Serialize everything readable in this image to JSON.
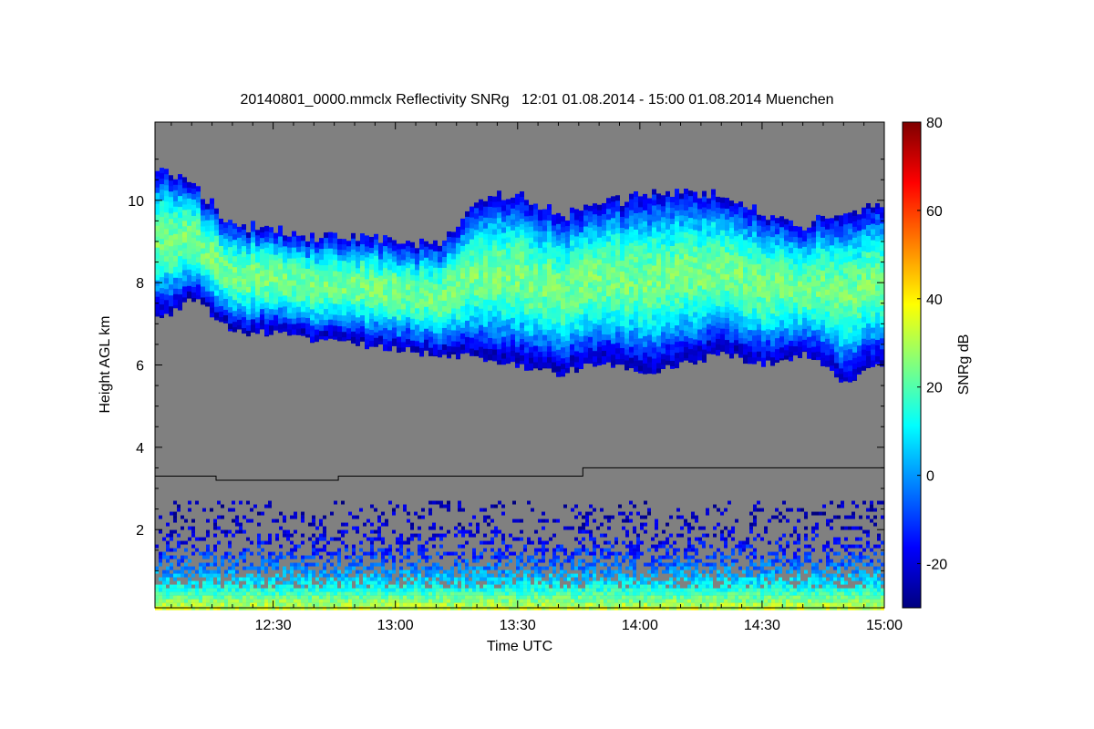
{
  "chart_data": {
    "type": "heatmap",
    "title": "20140801_0000.mmclx Reflectivity SNRg   12:01 01.08.2014 - 15:00 01.08.2014 Muenchen",
    "xlabel": "Time UTC",
    "ylabel": "Height AGL km",
    "colorbar_label": "SNRg dB",
    "x_ticks": [
      "12:30",
      "13:00",
      "13:30",
      "14:00",
      "14:30",
      "15:00"
    ],
    "x_tick_minutes": [
      30,
      60,
      90,
      120,
      150,
      180
    ],
    "xlim_minutes": [
      1,
      180
    ],
    "y_ticks": [
      "2",
      "4",
      "6",
      "8",
      "10"
    ],
    "y_tick_values": [
      2,
      4,
      6,
      8,
      10
    ],
    "ylim": [
      0.1,
      11.9
    ],
    "colorbar_ticks": [
      "80",
      "60",
      "40",
      "20",
      "0",
      "-20"
    ],
    "colorbar_tick_values": [
      80,
      60,
      40,
      20,
      0,
      -20
    ],
    "colorbar_range": [
      -30,
      80
    ],
    "colormap": [
      "#00007f",
      "#0000ff",
      "#007fff",
      "#00ffff",
      "#7fff7f",
      "#ffff00",
      "#ff7f00",
      "#ff0000",
      "#7f0000"
    ],
    "no_signal_color": "#808080",
    "cloud_layer": {
      "time_minutes": [
        1,
        10,
        20,
        30,
        40,
        50,
        60,
        70,
        80,
        90,
        100,
        110,
        120,
        130,
        140,
        150,
        160,
        170,
        180
      ],
      "top_km": [
        10.8,
        10.3,
        9.4,
        9.3,
        9.1,
        9.1,
        9.0,
        8.9,
        10.0,
        10.2,
        9.6,
        9.9,
        10.1,
        10.2,
        10.1,
        9.7,
        9.4,
        9.7,
        9.9
      ],
      "base_km": [
        7.1,
        7.6,
        6.8,
        6.8,
        6.6,
        6.5,
        6.4,
        6.2,
        6.2,
        6.0,
        5.8,
        6.1,
        5.8,
        6.0,
        6.3,
        6.0,
        6.3,
        5.6,
        6.1
      ],
      "peak_snr_db": 28
    },
    "boundary_layer_line": {
      "time_minutes": [
        1,
        16,
        16,
        46,
        46,
        106,
        106,
        180
      ],
      "height_km": [
        3.3,
        3.3,
        3.2,
        3.2,
        3.3,
        3.3,
        3.5,
        3.5
      ]
    },
    "low_level_clutter": {
      "top_km": 2.7,
      "surface_snr_db": 35
    }
  }
}
